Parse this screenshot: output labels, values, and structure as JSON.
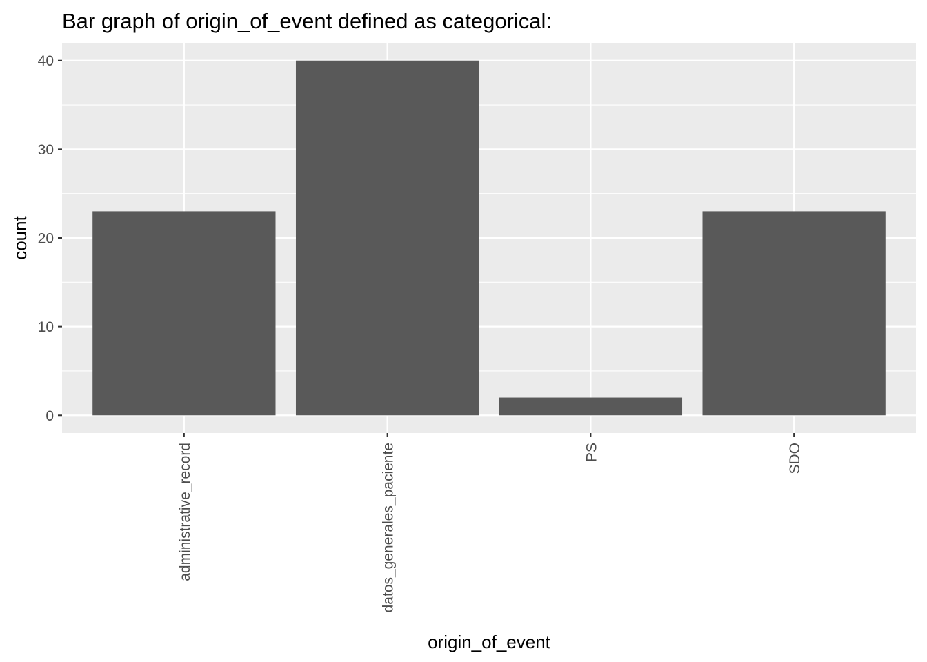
{
  "chart_data": {
    "type": "bar",
    "title": "Bar graph of origin_of_event defined as categorical:",
    "xlabel": "origin_of_event",
    "ylabel": "count",
    "categories": [
      "administrative_record",
      "datos_generales_paciente",
      "PS",
      "SDO"
    ],
    "values": [
      23,
      40,
      2,
      23
    ],
    "ylim": [
      -2,
      42
    ],
    "yticks": [
      0,
      10,
      20,
      30,
      40
    ],
    "grid": true,
    "colors": {
      "bar": "#595959",
      "panel": "#ebebeb",
      "grid": "#ffffff",
      "tick_text": "#4d4d4d"
    }
  }
}
